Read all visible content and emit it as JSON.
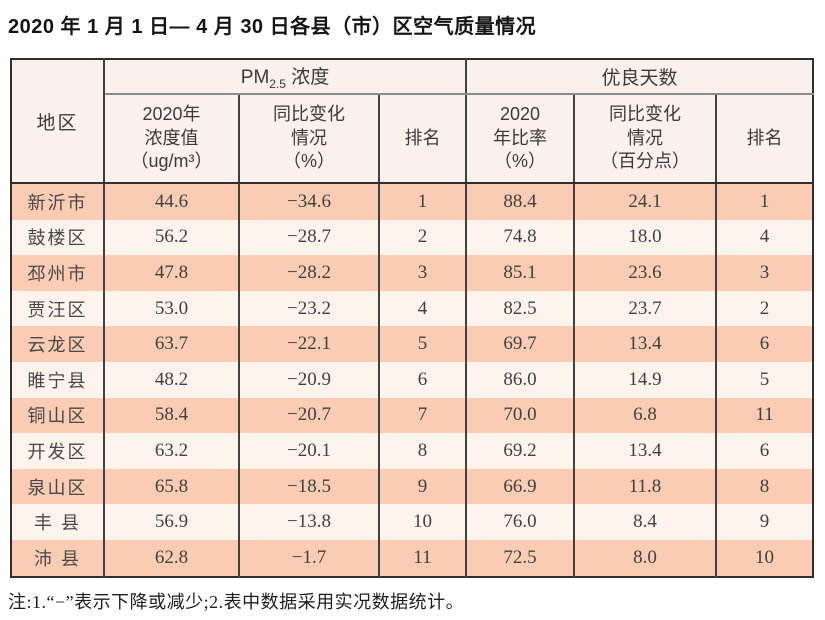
{
  "page": {
    "title": "2020 年 1 月 1 日— 4 月 30 日各县（市）区空气质量情况",
    "note": "注:1.“−”表示下降或减少;2.表中数据采用实况数据统计。"
  },
  "colors": {
    "row_stripe_salmon": "#f9ccb3",
    "row_stripe_light": "#fdf3ed",
    "header_background": "#faf1ec",
    "outer_border": "#2f2f2f",
    "grid_line": "#414141",
    "group_separator_line": "#8b8b8b"
  },
  "table": {
    "region_header": "地区",
    "group1": {
      "main": "PM",
      "sub": "2.5",
      "rest": " 浓度"
    },
    "group2": "优良天数",
    "subheaders": [
      {
        "lines": [
          "2020年",
          "浓度值",
          "（ug/m³）"
        ]
      },
      {
        "lines": [
          "同比变化",
          "情况",
          "（%）"
        ]
      },
      {
        "lines": [
          "排名"
        ]
      },
      {
        "lines": [
          "2020",
          "年比率",
          "（%）"
        ]
      },
      {
        "lines": [
          "同比变化",
          "情况",
          "（百分点）"
        ]
      },
      {
        "lines": [
          "排名"
        ]
      }
    ],
    "rows": [
      [
        "新沂市",
        "44.6",
        "−34.6",
        "1",
        "88.4",
        "24.1",
        "1"
      ],
      [
        "鼓楼区",
        "56.2",
        "−28.7",
        "2",
        "74.8",
        "18.0",
        "4"
      ],
      [
        "邳州市",
        "47.8",
        "−28.2",
        "3",
        "85.1",
        "23.6",
        "3"
      ],
      [
        "贾汪区",
        "53.0",
        "−23.2",
        "4",
        "82.5",
        "23.7",
        "2"
      ],
      [
        "云龙区",
        "63.7",
        "−22.1",
        "5",
        "69.7",
        "13.4",
        "6"
      ],
      [
        "睢宁县",
        "48.2",
        "−20.9",
        "6",
        "86.0",
        "14.9",
        "5"
      ],
      [
        "铜山区",
        "58.4",
        "−20.7",
        "7",
        "70.0",
        "6.8",
        "11"
      ],
      [
        "开发区",
        "63.2",
        "−20.1",
        "8",
        "69.2",
        "13.4",
        "6"
      ],
      [
        "泉山区",
        "65.8",
        "−18.5",
        "9",
        "66.9",
        "11.8",
        "8"
      ],
      [
        "丰 县",
        "56.9",
        "−13.8",
        "10",
        "76.0",
        "8.4",
        "9"
      ],
      [
        "沛 县",
        "62.8",
        "−1.7",
        "11",
        "72.5",
        "8.0",
        "10"
      ]
    ]
  }
}
